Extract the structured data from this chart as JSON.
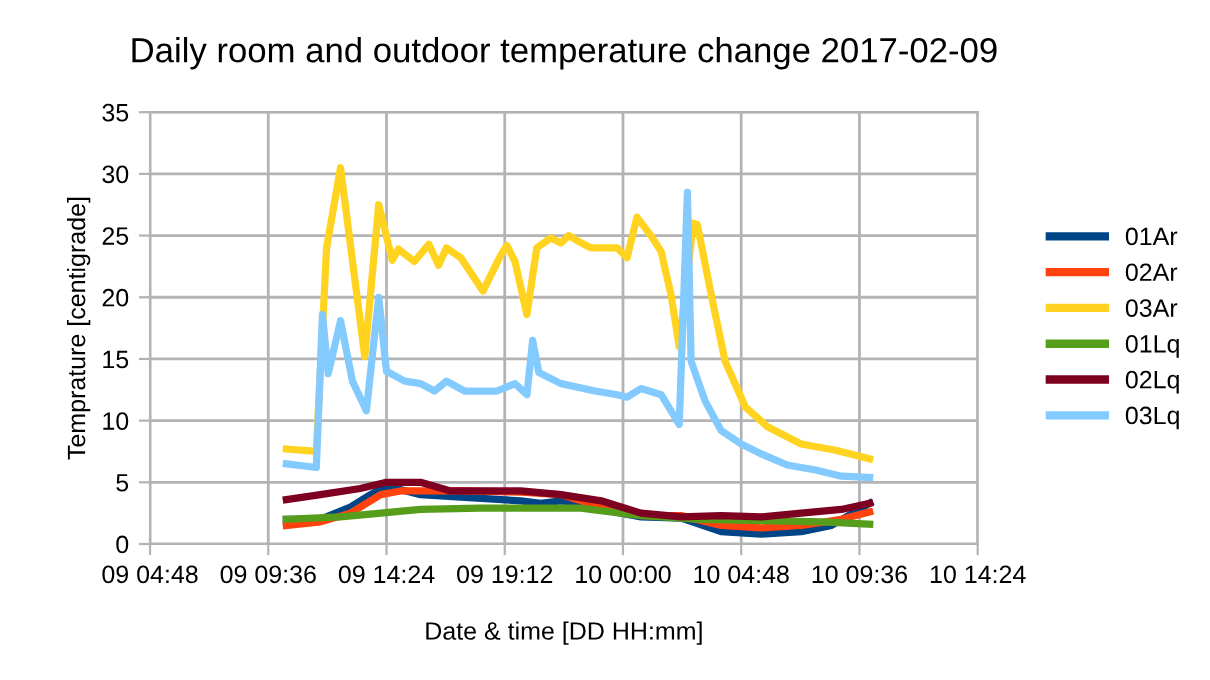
{
  "chart_data": {
    "type": "line",
    "title": "Daily room and outdoor temperature change 2017-02-09",
    "xlabel": "Date & time [DD HH:mm]",
    "ylabel": "Temprature [centigrade]",
    "xlim": [
      "2017-02-09T04:48",
      "2017-02-10T14:24"
    ],
    "xticks": [
      {
        "value": "2017-02-09T04:48",
        "label": "09 04:48"
      },
      {
        "value": "2017-02-09T09:36",
        "label": "09 09:36"
      },
      {
        "value": "2017-02-09T14:24",
        "label": "09 14:24"
      },
      {
        "value": "2017-02-09T19:12",
        "label": "09 19:12"
      },
      {
        "value": "2017-02-10T00:00",
        "label": "10 00:00"
      },
      {
        "value": "2017-02-10T04:48",
        "label": "10 04:48"
      },
      {
        "value": "2017-02-10T09:36",
        "label": "10 09:36"
      },
      {
        "value": "2017-02-10T14:24",
        "label": "10 14:24"
      }
    ],
    "ylim": [
      0,
      35
    ],
    "yticks": [
      0,
      5,
      10,
      15,
      20,
      25,
      30,
      35
    ],
    "grid": true,
    "legend": "right",
    "marker": "none",
    "line_style": "solid",
    "series": [
      {
        "name": "01Ar",
        "color": "#004586",
        "x": [
          "2017-02-09T10:20",
          "2017-02-09T11:43",
          "2017-02-09T12:56",
          "2017-02-09T13:45",
          "2017-02-09T14:24",
          "2017-02-09T15:47",
          "2017-02-09T17:25",
          "2017-02-09T19:51",
          "2017-02-09T20:40",
          "2017-02-09T21:29",
          "2017-02-09T23:07",
          "2017-02-10T00:44",
          "2017-02-10T02:22",
          "2017-02-10T03:59",
          "2017-02-10T05:37",
          "2017-02-10T07:14",
          "2017-02-10T08:28",
          "2017-02-10T10:01"
        ],
        "values": [
          2.0,
          2.0,
          3.0,
          4.0,
          4.7,
          4.0,
          3.8,
          3.5,
          3.3,
          3.5,
          2.8,
          2.2,
          2.1,
          1.0,
          0.8,
          1.0,
          1.5,
          3.3
        ]
      },
      {
        "name": "02Ar",
        "color": "#ff420e",
        "x": [
          "2017-02-09T10:20",
          "2017-02-09T11:43",
          "2017-02-09T12:56",
          "2017-02-09T14:10",
          "2017-02-09T14:58",
          "2017-02-09T17:25",
          "2017-02-09T19:51",
          "2017-02-09T21:29",
          "2017-02-09T23:07",
          "2017-02-10T00:44",
          "2017-02-10T02:22",
          "2017-02-10T03:59",
          "2017-02-10T05:37",
          "2017-02-10T07:14",
          "2017-02-10T08:52",
          "2017-02-10T10:01"
        ],
        "values": [
          1.5,
          1.8,
          2.5,
          4.0,
          4.3,
          4.3,
          4.2,
          4.0,
          3.0,
          2.3,
          2.3,
          1.5,
          1.3,
          1.5,
          2.0,
          2.6
        ]
      },
      {
        "name": "03Ar",
        "color": "#ffd320",
        "x": [
          "2017-02-09T10:20",
          "2017-02-09T11:33",
          "2017-02-09T11:58",
          "2017-02-09T12:32",
          "2017-02-09T13:31",
          "2017-02-09T14:05",
          "2017-02-09T14:38",
          "2017-02-09T14:53",
          "2017-02-09T15:32",
          "2017-02-09T16:07",
          "2017-02-09T16:31",
          "2017-02-09T16:50",
          "2017-02-09T17:25",
          "2017-02-09T18:19",
          "2017-02-09T19:02",
          "2017-02-09T19:17",
          "2017-02-09T19:37",
          "2017-02-09T20:06",
          "2017-02-09T20:30",
          "2017-02-09T21:04",
          "2017-02-09T21:29",
          "2017-02-09T21:48",
          "2017-02-09T22:13",
          "2017-02-09T22:42",
          "2017-02-09T23:46",
          "2017-02-10T00:10",
          "2017-02-10T00:34",
          "2017-02-10T01:08",
          "2017-02-10T01:33",
          "2017-02-10T01:57",
          "2017-02-10T02:17",
          "2017-02-10T02:51",
          "2017-02-10T03:01",
          "2017-02-10T03:35",
          "2017-02-10T04:09",
          "2017-02-10T04:58",
          "2017-02-10T05:52",
          "2017-02-10T07:14",
          "2017-02-10T08:38",
          "2017-02-10T10:01"
        ],
        "values": [
          7.7,
          7.5,
          24,
          30.5,
          15.2,
          27.5,
          23,
          23.9,
          22.9,
          24.3,
          22.6,
          24,
          23.2,
          20.5,
          23.4,
          24.2,
          22.9,
          18.6,
          24,
          24.8,
          24.4,
          25,
          24.5,
          24,
          24,
          23.2,
          26.5,
          25,
          23.7,
          20.2,
          16,
          26,
          25.9,
          20.2,
          14.8,
          11.1,
          9.5,
          8.1,
          7.6,
          6.9
        ]
      },
      {
        "name": "01Lq",
        "color": "#579d1c",
        "x": [
          "2017-02-09T10:20",
          "2017-02-09T12:32",
          "2017-02-09T14:10",
          "2017-02-09T15:47",
          "2017-02-09T18:13",
          "2017-02-09T22:17",
          "2017-02-10T00:44",
          "2017-02-10T03:10",
          "2017-02-10T05:37",
          "2017-02-10T08:04",
          "2017-02-10T10:01"
        ],
        "values": [
          2.0,
          2.2,
          2.5,
          2.8,
          2.9,
          2.9,
          2.3,
          2.0,
          1.9,
          1.8,
          1.6
        ]
      },
      {
        "name": "02Lq",
        "color": "#7e0021",
        "x": [
          "2017-02-09T10:20",
          "2017-02-09T11:43",
          "2017-02-09T13:20",
          "2017-02-09T14:24",
          "2017-02-09T15:47",
          "2017-02-09T17:00",
          "2017-02-09T19:51",
          "2017-02-09T21:29",
          "2017-02-09T23:07",
          "2017-02-10T00:44",
          "2017-02-10T02:22",
          "2017-02-10T03:59",
          "2017-02-10T05:37",
          "2017-02-10T07:14",
          "2017-02-10T08:52",
          "2017-02-10T10:01"
        ],
        "values": [
          3.6,
          4.0,
          4.5,
          5.0,
          5.0,
          4.3,
          4.3,
          4.0,
          3.5,
          2.5,
          2.2,
          2.3,
          2.2,
          2.5,
          2.8,
          3.3
        ]
      },
      {
        "name": "03Lq",
        "color": "#83caff",
        "x": [
          "2017-02-09T10:20",
          "2017-02-09T11:33",
          "2017-02-09T11:48",
          "2017-02-09T12:02",
          "2017-02-09T12:32",
          "2017-02-09T13:01",
          "2017-02-09T13:35",
          "2017-02-09T14:05",
          "2017-02-09T14:24",
          "2017-02-09T15:08",
          "2017-02-09T15:47",
          "2017-02-09T16:21",
          "2017-02-09T16:50",
          "2017-02-09T17:34",
          "2017-02-09T18:53",
          "2017-02-09T19:37",
          "2017-02-09T20:06",
          "2017-02-09T20:20",
          "2017-02-09T20:35",
          "2017-02-09T21:29",
          "2017-02-09T22:52",
          "2017-02-09T23:46",
          "2017-02-10T00:10",
          "2017-02-10T00:44",
          "2017-02-10T01:33",
          "2017-02-10T02:17",
          "2017-02-10T02:37",
          "2017-02-10T02:46",
          "2017-02-10T03:20",
          "2017-02-10T03:59",
          "2017-02-10T04:48",
          "2017-02-10T05:37",
          "2017-02-10T06:40",
          "2017-02-10T07:49",
          "2017-02-10T08:52",
          "2017-02-10T10:01"
        ],
        "values": [
          6.5,
          6.2,
          18.6,
          13.8,
          18.1,
          13.2,
          10.8,
          20,
          14,
          13.2,
          13,
          12.4,
          13.2,
          12.4,
          12.4,
          13,
          12.1,
          16.5,
          13.9,
          13,
          12.4,
          12.1,
          11.9,
          12.6,
          12.1,
          9.7,
          28.5,
          14.8,
          11.6,
          9.2,
          8.1,
          7.3,
          6.4,
          6.0,
          5.5,
          5.4
        ]
      }
    ]
  }
}
